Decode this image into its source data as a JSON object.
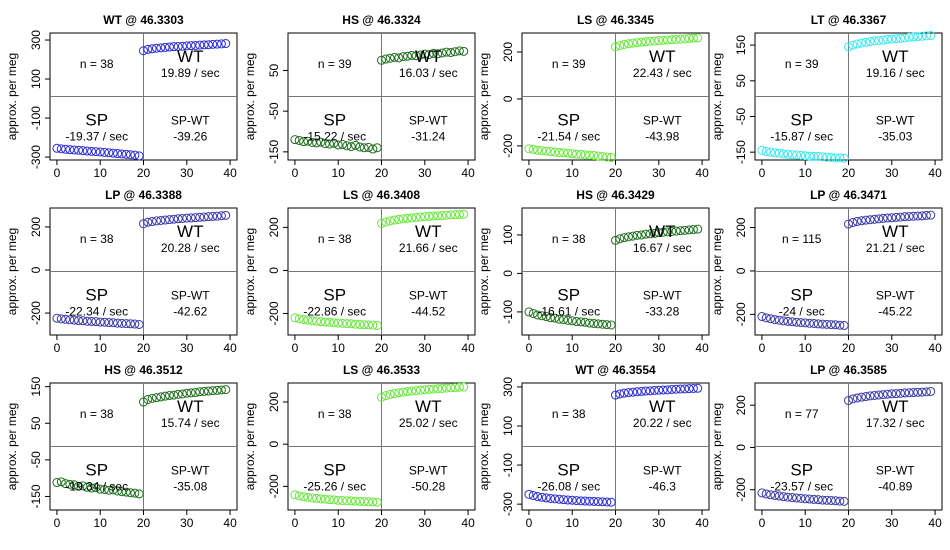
{
  "chart_data": [
    {
      "type": "scatter",
      "title": "WT @ 46.3303",
      "ylabel": "approx. per meg",
      "color": "#2b2bd6",
      "xlim": [
        -1.6,
        41.6
      ],
      "ylim": [
        -315,
        336
      ],
      "xticks": [
        0,
        10,
        20,
        30,
        40
      ],
      "yticks": [
        -300,
        -100,
        100,
        300
      ],
      "x": [
        0,
        1,
        2,
        3,
        4,
        5,
        6,
        7,
        8,
        9,
        10,
        11,
        12,
        13,
        14,
        15,
        16,
        17,
        18,
        19,
        20,
        21,
        22,
        23,
        24,
        25,
        26,
        27,
        28,
        29,
        30,
        31,
        32,
        33,
        34,
        35,
        36,
        37,
        38,
        39
      ],
      "values": [
        -255,
        -258,
        -260,
        -262,
        -264,
        -265,
        -267,
        -269,
        -271,
        -272,
        -274,
        -276,
        -278,
        -280,
        -282,
        -284,
        -286,
        -288,
        -290,
        -294,
        245,
        252,
        255,
        258,
        260,
        262,
        264,
        266,
        267,
        268,
        270,
        271,
        272,
        274,
        275,
        276,
        278,
        279,
        280,
        282
      ],
      "n_label": "n = 38",
      "upper_name": "WT",
      "upper_rate": "19.89 / sec",
      "lower_name": "SP",
      "lower_rate": "-19.37 / sec",
      "diff_name": "SP-WT",
      "diff": "-39.26"
    },
    {
      "type": "scatter",
      "title": "HS @ 46.3324",
      "ylabel": "approx. per meg",
      "color": "#1e6e1e",
      "xlim": [
        -1.6,
        41.6
      ],
      "ylim": [
        -170,
        142
      ],
      "xticks": [
        0,
        10,
        20,
        30,
        40
      ],
      "yticks": [
        -150,
        -50,
        50
      ],
      "x": [
        0,
        1,
        2,
        3,
        4,
        5,
        6,
        7,
        8,
        9,
        10,
        11,
        12,
        13,
        14,
        15,
        16,
        17,
        18,
        19,
        20,
        21,
        22,
        23,
        24,
        25,
        26,
        27,
        28,
        29,
        30,
        31,
        32,
        33,
        34,
        35,
        36,
        37,
        38,
        39
      ],
      "values": [
        -120,
        -122,
        -125,
        -124,
        -127,
        -128,
        -126,
        -130,
        -131,
        -129,
        -133,
        -132,
        -135,
        -137,
        -134,
        -138,
        -140,
        -139,
        -143,
        -140,
        75,
        78,
        80,
        82,
        81,
        84,
        85,
        87,
        86,
        88,
        90,
        89,
        92,
        91,
        93,
        95,
        94,
        96,
        98,
        97
      ],
      "n_label": "n = 39",
      "upper_name": "WT",
      "upper_rate": "16.03 / sec",
      "lower_name": "SP",
      "lower_rate": "-15.22 / sec",
      "diff_name": "SP-WT",
      "diff": "-31.24"
    },
    {
      "type": "scatter",
      "title": "LS @ 46.3345",
      "ylabel": "approx. per meg",
      "color": "#66e83a",
      "xlim": [
        -1.6,
        41.6
      ],
      "ylim": [
        -260,
        281
      ],
      "xticks": [
        0,
        10,
        20,
        30,
        40
      ],
      "yticks": [
        -200,
        0,
        200
      ],
      "x": [
        0,
        1,
        2,
        3,
        4,
        5,
        6,
        7,
        8,
        9,
        10,
        11,
        12,
        13,
        14,
        15,
        16,
        17,
        18,
        19,
        20,
        21,
        22,
        23,
        24,
        25,
        26,
        27,
        28,
        29,
        30,
        31,
        32,
        33,
        34,
        35,
        36,
        37,
        38,
        39
      ],
      "values": [
        -212,
        -215,
        -218,
        -220,
        -222,
        -224,
        -226,
        -228,
        -229,
        -231,
        -233,
        -235,
        -236,
        -238,
        -240,
        -241,
        -243,
        -245,
        -247,
        -249,
        222,
        228,
        232,
        235,
        238,
        240,
        242,
        244,
        246,
        247,
        249,
        250,
        251,
        253,
        254,
        255,
        256,
        258,
        259,
        260
      ],
      "n_label": "n = 39",
      "upper_name": "WT",
      "upper_rate": "22.43 / sec",
      "lower_name": "SP",
      "lower_rate": "-21.54 / sec",
      "diff_name": "SP-WT",
      "diff": "-43.98"
    },
    {
      "type": "scatter",
      "title": "LT @ 46.3367",
      "ylabel": "approx. per meg",
      "color": "#3ae8ee",
      "xlim": [
        -1.6,
        41.6
      ],
      "ylim": [
        -172,
        184
      ],
      "xticks": [
        0,
        10,
        20,
        30,
        40
      ],
      "yticks": [
        -150,
        -50,
        50,
        150
      ],
      "x": [
        0,
        1,
        2,
        3,
        4,
        5,
        6,
        7,
        8,
        9,
        10,
        11,
        12,
        13,
        14,
        15,
        16,
        17,
        18,
        19,
        20,
        21,
        22,
        23,
        24,
        25,
        26,
        27,
        28,
        29,
        30,
        31,
        32,
        33,
        34,
        35,
        36,
        37,
        38,
        39
      ],
      "values": [
        -145,
        -148,
        -150,
        -152,
        -153,
        -155,
        -156,
        -157,
        -158,
        -159,
        -160,
        -161,
        -162,
        -162,
        -163,
        -164,
        -165,
        -166,
        -166,
        -167,
        145,
        150,
        153,
        156,
        158,
        160,
        162,
        163,
        164,
        166,
        167,
        168,
        169,
        170,
        172,
        173,
        174,
        175,
        176,
        177
      ],
      "n_label": "n = 39",
      "upper_name": "WT",
      "upper_rate": "19.16 / sec",
      "lower_name": "SP",
      "lower_rate": "-15.87 / sec",
      "diff_name": "SP-WT",
      "diff": "-35.03"
    },
    {
      "type": "scatter",
      "title": "LP @ 46.3388",
      "ylabel": "approx. per meg",
      "color": "#3a3aa8",
      "xlim": [
        -1.6,
        41.6
      ],
      "ylim": [
        -302,
        288
      ],
      "xticks": [
        0,
        10,
        20,
        30,
        40
      ],
      "yticks": [
        -200,
        0,
        200
      ],
      "x": [
        0,
        1,
        2,
        3,
        4,
        5,
        6,
        7,
        8,
        9,
        10,
        11,
        12,
        13,
        14,
        15,
        16,
        17,
        18,
        19,
        20,
        21,
        22,
        23,
        24,
        25,
        26,
        27,
        28,
        29,
        30,
        31,
        32,
        33,
        34,
        35,
        36,
        37,
        38,
        39
      ],
      "values": [
        -224,
        -227,
        -229,
        -231,
        -233,
        -235,
        -236,
        -238,
        -239,
        -240,
        -242,
        -243,
        -244,
        -245,
        -247,
        -248,
        -249,
        -250,
        -251,
        -253,
        215,
        222,
        225,
        228,
        230,
        232,
        234,
        236,
        238,
        239,
        241,
        242,
        243,
        245,
        246,
        248,
        249,
        250,
        252,
        254
      ],
      "n_label": "n = 38",
      "upper_name": "WT",
      "upper_rate": "20.28 / sec",
      "lower_name": "SP",
      "lower_rate": "-22.34 / sec",
      "diff_name": "SP-WT",
      "diff": "-42.62"
    },
    {
      "type": "scatter",
      "title": "LS @ 46.3408",
      "ylabel": "approx. per meg",
      "color": "#66e83a",
      "xlim": [
        -1.6,
        41.6
      ],
      "ylim": [
        -300,
        290
      ],
      "xticks": [
        0,
        10,
        20,
        30,
        40
      ],
      "yticks": [
        -200,
        0,
        200
      ],
      "x": [
        0,
        1,
        2,
        3,
        4,
        5,
        6,
        7,
        8,
        9,
        10,
        11,
        12,
        13,
        14,
        15,
        16,
        17,
        18,
        19,
        20,
        21,
        22,
        23,
        24,
        25,
        26,
        27,
        28,
        29,
        30,
        31,
        32,
        33,
        34,
        35,
        36,
        37,
        38,
        39
      ],
      "values": [
        -220,
        -225,
        -228,
        -231,
        -234,
        -236,
        -238,
        -240,
        -241,
        -243,
        -244,
        -246,
        -247,
        -248,
        -250,
        -251,
        -252,
        -253,
        -254,
        -256,
        218,
        225,
        230,
        234,
        237,
        240,
        242,
        244,
        246,
        248,
        250,
        251,
        253,
        254,
        255,
        257,
        258,
        259,
        260,
        261
      ],
      "n_label": "n = 38",
      "upper_name": "WT",
      "upper_rate": "21.66 / sec",
      "lower_name": "SP",
      "lower_rate": "-22.86 / sec",
      "diff_name": "SP-WT",
      "diff": "-44.52"
    },
    {
      "type": "scatter",
      "title": "HS @ 46.3429",
      "ylabel": "approx. per meg",
      "color": "#1e6e1e",
      "xlim": [
        -1.6,
        41.6
      ],
      "ylim": [
        -160,
        170
      ],
      "xticks": [
        0,
        10,
        20,
        30,
        40
      ],
      "yticks": [
        -100,
        0,
        100
      ],
      "x": [
        0,
        1,
        2,
        3,
        4,
        5,
        6,
        7,
        8,
        9,
        10,
        11,
        12,
        13,
        14,
        15,
        16,
        17,
        18,
        19,
        20,
        21,
        22,
        23,
        24,
        25,
        26,
        27,
        28,
        29,
        30,
        31,
        32,
        33,
        34,
        35,
        36,
        37,
        38,
        39
      ],
      "values": [
        -100,
        -104,
        -108,
        -110,
        -112,
        -115,
        -116,
        -119,
        -120,
        -122,
        -123,
        -125,
        -126,
        -127,
        -129,
        -130,
        -131,
        -132,
        -133,
        -134,
        86,
        90,
        93,
        95,
        97,
        99,
        100,
        102,
        103,
        104,
        106,
        107,
        108,
        109,
        110,
        111,
        112,
        113,
        114,
        115
      ],
      "n_label": "n = 38",
      "upper_name": "WT",
      "upper_rate": "16.67 / sec",
      "lower_name": "SP",
      "lower_rate": "-16.61 / sec",
      "diff_name": "SP-WT",
      "diff": "-33.28"
    },
    {
      "type": "scatter",
      "title": "LP @ 46.3471",
      "ylabel": "approx. per meg",
      "color": "#3a3aa8",
      "xlim": [
        -1.6,
        41.6
      ],
      "ylim": [
        -295,
        290
      ],
      "xticks": [
        0,
        10,
        20,
        30,
        40
      ],
      "yticks": [
        -200,
        0,
        200
      ],
      "x": [
        0,
        1,
        2,
        3,
        4,
        5,
        6,
        7,
        8,
        9,
        10,
        11,
        12,
        13,
        14,
        15,
        16,
        17,
        18,
        19,
        20,
        21,
        22,
        23,
        24,
        25,
        26,
        27,
        28,
        29,
        30,
        31,
        32,
        33,
        34,
        35,
        36,
        37,
        38,
        39
      ],
      "values": [
        -210,
        -216,
        -220,
        -224,
        -227,
        -230,
        -232,
        -234,
        -236,
        -238,
        -239,
        -241,
        -242,
        -244,
        -245,
        -246,
        -247,
        -248,
        -250,
        -251,
        216,
        223,
        228,
        231,
        234,
        236,
        238,
        240,
        242,
        244,
        245,
        247,
        248,
        250,
        251,
        252,
        253,
        254,
        256,
        257
      ],
      "n_label": "n = 115",
      "upper_name": "WT",
      "upper_rate": "21.21 / sec",
      "lower_name": "SP",
      "lower_rate": "-24 / sec",
      "diff_name": "SP-WT",
      "diff": "-45.22"
    },
    {
      "type": "scatter",
      "title": "HS @ 46.3512",
      "ylabel": "approx. per meg",
      "color": "#1e6e1e",
      "xlim": [
        -1.6,
        41.6
      ],
      "ylim": [
        -187,
        160
      ],
      "xticks": [
        0,
        10,
        20,
        30,
        40
      ],
      "yticks": [
        -150,
        -50,
        50,
        150
      ],
      "x": [
        0,
        1,
        2,
        3,
        4,
        5,
        6,
        7,
        8,
        9,
        10,
        11,
        12,
        13,
        14,
        15,
        16,
        17,
        18,
        19,
        20,
        21,
        22,
        23,
        24,
        25,
        26,
        27,
        28,
        29,
        30,
        31,
        32,
        33,
        34,
        35,
        36,
        37,
        38,
        39
      ],
      "values": [
        -112,
        -110,
        -115,
        -117,
        -118,
        -122,
        -121,
        -125,
        -127,
        -126,
        -130,
        -131,
        -133,
        -132,
        -135,
        -137,
        -138,
        -140,
        -141,
        -143,
        108,
        115,
        118,
        120,
        122,
        124,
        126,
        127,
        129,
        130,
        132,
        133,
        134,
        136,
        137,
        138,
        139,
        140,
        141,
        142
      ],
      "n_label": "n = 38",
      "upper_name": "WT",
      "upper_rate": "15.74 / sec",
      "lower_name": "SP",
      "lower_rate": "-19.34 / sec",
      "diff_name": "SP-WT",
      "diff": "-35.08"
    },
    {
      "type": "scatter",
      "title": "LS @ 46.3533",
      "ylabel": "approx. per meg",
      "color": "#66e83a",
      "xlim": [
        -1.6,
        41.6
      ],
      "ylim": [
        -312,
        290
      ],
      "xticks": [
        0,
        10,
        20,
        30,
        40
      ],
      "yticks": [
        -200,
        0,
        200
      ],
      "x": [
        0,
        1,
        2,
        3,
        4,
        5,
        6,
        7,
        8,
        9,
        10,
        11,
        12,
        13,
        14,
        15,
        16,
        17,
        18,
        19,
        20,
        21,
        22,
        23,
        24,
        25,
        26,
        27,
        28,
        29,
        30,
        31,
        32,
        33,
        34,
        35,
        36,
        37,
        38,
        39
      ],
      "values": [
        -240,
        -245,
        -249,
        -252,
        -255,
        -257,
        -259,
        -261,
        -263,
        -264,
        -266,
        -267,
        -268,
        -269,
        -270,
        -271,
        -272,
        -273,
        -274,
        -275,
        222,
        230,
        236,
        240,
        244,
        247,
        250,
        252,
        254,
        256,
        258,
        260,
        261,
        263,
        264,
        266,
        267,
        268,
        270,
        271
      ],
      "n_label": "n = 38",
      "upper_name": "WT",
      "upper_rate": "25.02 / sec",
      "lower_name": "SP",
      "lower_rate": "-25.26 / sec",
      "diff_name": "SP-WT",
      "diff": "-50.28"
    },
    {
      "type": "scatter",
      "title": "WT @ 46.3554",
      "ylabel": "approx. per meg",
      "color": "#2b2bd6",
      "xlim": [
        -1.6,
        41.6
      ],
      "ylim": [
        -330,
        320
      ],
      "xticks": [
        0,
        10,
        20,
        30,
        40
      ],
      "yticks": [
        -300,
        -100,
        100,
        300
      ],
      "x": [
        0,
        1,
        2,
        3,
        4,
        5,
        6,
        7,
        8,
        9,
        10,
        11,
        12,
        13,
        14,
        15,
        16,
        17,
        18,
        19,
        20,
        21,
        22,
        23,
        24,
        25,
        26,
        27,
        28,
        29,
        30,
        31,
        32,
        33,
        34,
        35,
        36,
        37,
        38,
        39
      ],
      "values": [
        -250,
        -256,
        -261,
        -265,
        -268,
        -271,
        -273,
        -275,
        -277,
        -279,
        -280,
        -282,
        -283,
        -284,
        -285,
        -286,
        -287,
        -288,
        -289,
        -290,
        258,
        264,
        268,
        271,
        273,
        275,
        277,
        279,
        280,
        282,
        283,
        284,
        285,
        287,
        288,
        289,
        290,
        291,
        292,
        293
      ],
      "n_label": "n = 38",
      "upper_name": "WT",
      "upper_rate": "20.22 / sec",
      "lower_name": "SP",
      "lower_rate": "-26.08 / sec",
      "diff_name": "SP-WT",
      "diff": "-46.3"
    },
    {
      "type": "scatter",
      "title": "LP @ 46.3585",
      "ylabel": "approx. per meg",
      "color": "#3a3aa8",
      "xlim": [
        -1.6,
        41.6
      ],
      "ylim": [
        -296,
        305
      ],
      "xticks": [
        0,
        10,
        20,
        30,
        40
      ],
      "yticks": [
        -200,
        0,
        200
      ],
      "x": [
        0,
        1,
        2,
        3,
        4,
        5,
        6,
        7,
        8,
        9,
        10,
        11,
        12,
        13,
        14,
        15,
        16,
        17,
        18,
        19,
        20,
        21,
        22,
        23,
        24,
        25,
        26,
        27,
        28,
        29,
        30,
        31,
        32,
        33,
        34,
        35,
        36,
        37,
        38,
        39
      ],
      "values": [
        -215,
        -220,
        -224,
        -227,
        -230,
        -233,
        -235,
        -237,
        -239,
        -241,
        -243,
        -244,
        -246,
        -247,
        -249,
        -250,
        -251,
        -252,
        -254,
        -255,
        222,
        230,
        234,
        238,
        241,
        244,
        246,
        248,
        250,
        252,
        254,
        255,
        256,
        258,
        259,
        260,
        261,
        262,
        263,
        265
      ],
      "n_label": "n = 77",
      "upper_name": "WT",
      "upper_rate": "17.32 / sec",
      "lower_name": "SP",
      "lower_rate": "-23.57 / sec",
      "diff_name": "SP-WT",
      "diff": "-40.89"
    }
  ]
}
